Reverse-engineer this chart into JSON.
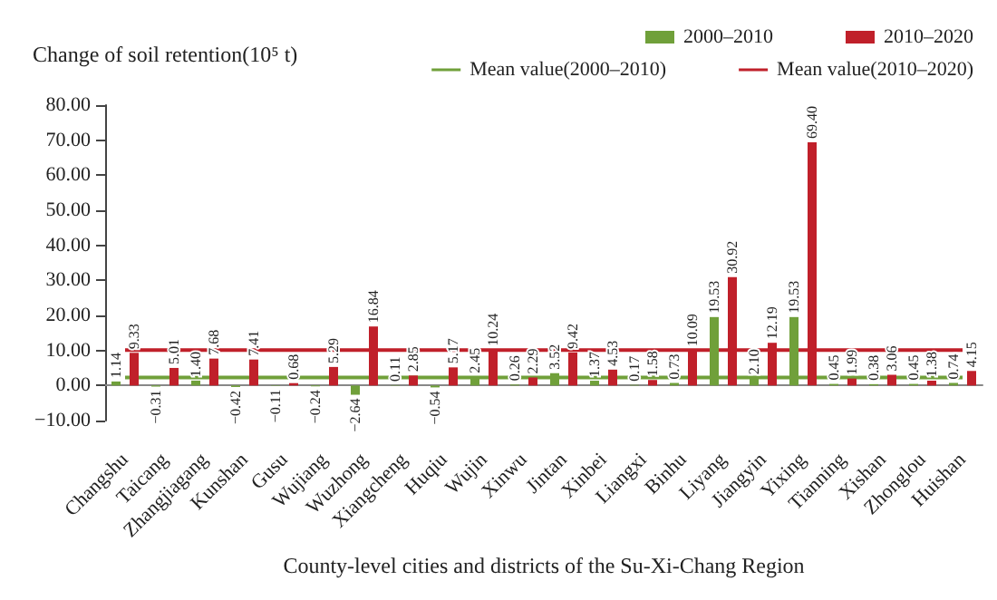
{
  "chart_data": {
    "type": "bar",
    "ylabel": "Change of soil retention(10⁵ t)",
    "xlabel": "County-level cities and districts of the Su-Xi-Chang Region",
    "categories": [
      "Changshu",
      "Taicang",
      "Zhangjiagang",
      "Kunshan",
      "Gusu",
      "Wujiang",
      "Wuzhong",
      "Xiangcheng",
      "Huqiu",
      "Wujin",
      "Xinwu",
      "Jintan",
      "Xinbei",
      "Liangxi",
      "Binhu",
      "Liyang",
      "Jiangyin",
      "Yixing",
      "Tianning",
      "Xishan",
      "Zhonglou",
      "Huishan"
    ],
    "series": [
      {
        "name": "2000–2010",
        "color": "#70a03a",
        "values": [
          1.14,
          -0.31,
          1.4,
          -0.42,
          -0.11,
          -0.24,
          -2.64,
          0.11,
          -0.54,
          2.45,
          0.26,
          3.52,
          1.37,
          0.17,
          0.73,
          19.53,
          2.1,
          19.53,
          0.45,
          0.38,
          0.45,
          0.74
        ],
        "value_labels": [
          "1.14",
          "−0.31",
          "1.40",
          "−0.42",
          "−0.11",
          "−0.24",
          "−2.64",
          "0.11",
          "−0.54",
          "2.45",
          "0.26",
          "3.52",
          "1.37",
          "0.17",
          "0.73",
          "19.53",
          "2.10",
          "19.53",
          "0.45",
          "0.38",
          "0.45",
          "0.74"
        ]
      },
      {
        "name": "2010–2020",
        "color": "#c0202a",
        "values": [
          9.33,
          5.01,
          7.68,
          7.41,
          0.68,
          5.29,
          16.84,
          2.85,
          5.17,
          10.24,
          2.29,
          9.42,
          4.53,
          1.58,
          10.09,
          30.92,
          12.19,
          69.4,
          1.99,
          3.06,
          1.38,
          4.15
        ],
        "value_labels": [
          "9.33",
          "5.01",
          "7.68",
          "7.41",
          "0.68",
          "5.29",
          "16.84",
          "2.85",
          "5.17",
          "10.24",
          "2.29",
          "9.42",
          "4.53",
          "1.58",
          "10.09",
          "30.92",
          "12.19",
          "69.40",
          "1.99",
          "3.06",
          "1.38",
          "4.15"
        ]
      },
      {
        "name": "Mean value(2000–2010)",
        "type": "line",
        "color": "#70a03a",
        "values": [
          2.3,
          2.3,
          2.3,
          2.3,
          2.3,
          2.3,
          2.3,
          2.3,
          2.3,
          2.3,
          2.3,
          2.3,
          2.3,
          2.3,
          2.3,
          2.3,
          2.3,
          2.3,
          2.3,
          2.3,
          2.3,
          2.3
        ]
      },
      {
        "name": "Mean value(2010–2020)",
        "type": "line",
        "color": "#c0202a",
        "values": [
          10.1,
          10.1,
          10.1,
          10.1,
          10.1,
          10.1,
          10.1,
          10.1,
          10.1,
          10.1,
          10.1,
          10.1,
          10.1,
          10.1,
          10.1,
          10.1,
          10.1,
          10.1,
          10.1,
          10.1,
          10.1,
          10.1
        ]
      }
    ],
    "ylim": [
      -10,
      80
    ],
    "yticks": [
      {
        "value": -10,
        "label": "−10.00"
      },
      {
        "value": 0,
        "label": "0.00"
      },
      {
        "value": 10,
        "label": "10.00"
      },
      {
        "value": 20,
        "label": "20.00"
      },
      {
        "value": 30,
        "label": "30.00"
      },
      {
        "value": 40,
        "label": "40.00"
      },
      {
        "value": 50,
        "label": "50.00"
      },
      {
        "value": 60,
        "label": "60.00"
      },
      {
        "value": 70,
        "label": "70.00"
      },
      {
        "value": 80,
        "label": "80.00"
      }
    ],
    "legend": "top right",
    "marker": "none"
  }
}
